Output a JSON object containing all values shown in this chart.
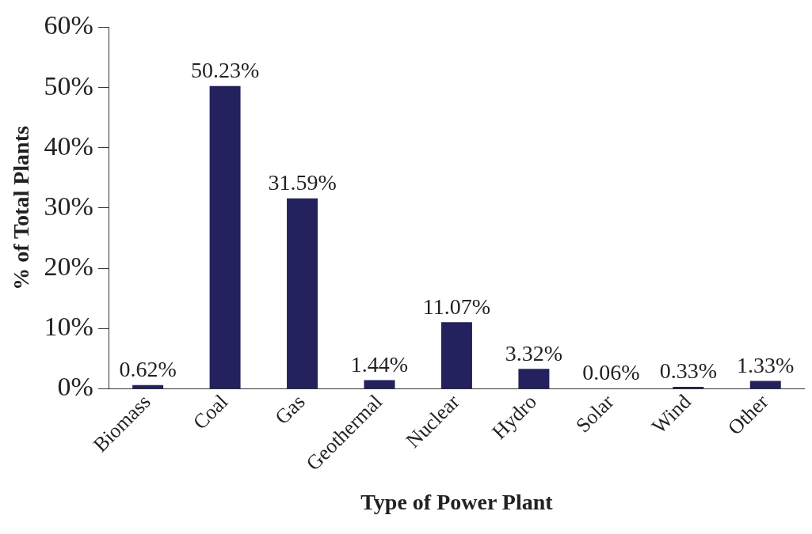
{
  "chart_data": {
    "type": "bar",
    "xlabel": "Type of Power Plant",
    "ylabel": "% of Total Plants",
    "categories": [
      "Biomass",
      "Coal",
      "Gas",
      "Geothermal",
      "Nuclear",
      "Hydro",
      "Solar",
      "Wind",
      "Other"
    ],
    "values": [
      0.62,
      50.23,
      31.59,
      1.44,
      11.07,
      3.32,
      0.06,
      0.33,
      1.33
    ],
    "value_labels": [
      "0.62%",
      "50.23%",
      "31.59%",
      "1.44%",
      "11.07%",
      "3.32%",
      "0.06%",
      "0.33%",
      "1.33%"
    ],
    "color": "#23215e",
    "ylim": [
      0,
      60
    ],
    "yticks": [
      {
        "value": 0,
        "label": "0%"
      },
      {
        "value": 10,
        "label": "10%"
      },
      {
        "value": 20,
        "label": "20%"
      },
      {
        "value": 30,
        "label": "30%"
      },
      {
        "value": 40,
        "label": "40%"
      },
      {
        "value": 50,
        "label": "50%"
      },
      {
        "value": 60,
        "label": "60%"
      }
    ],
    "grid": false,
    "legend": false
  }
}
